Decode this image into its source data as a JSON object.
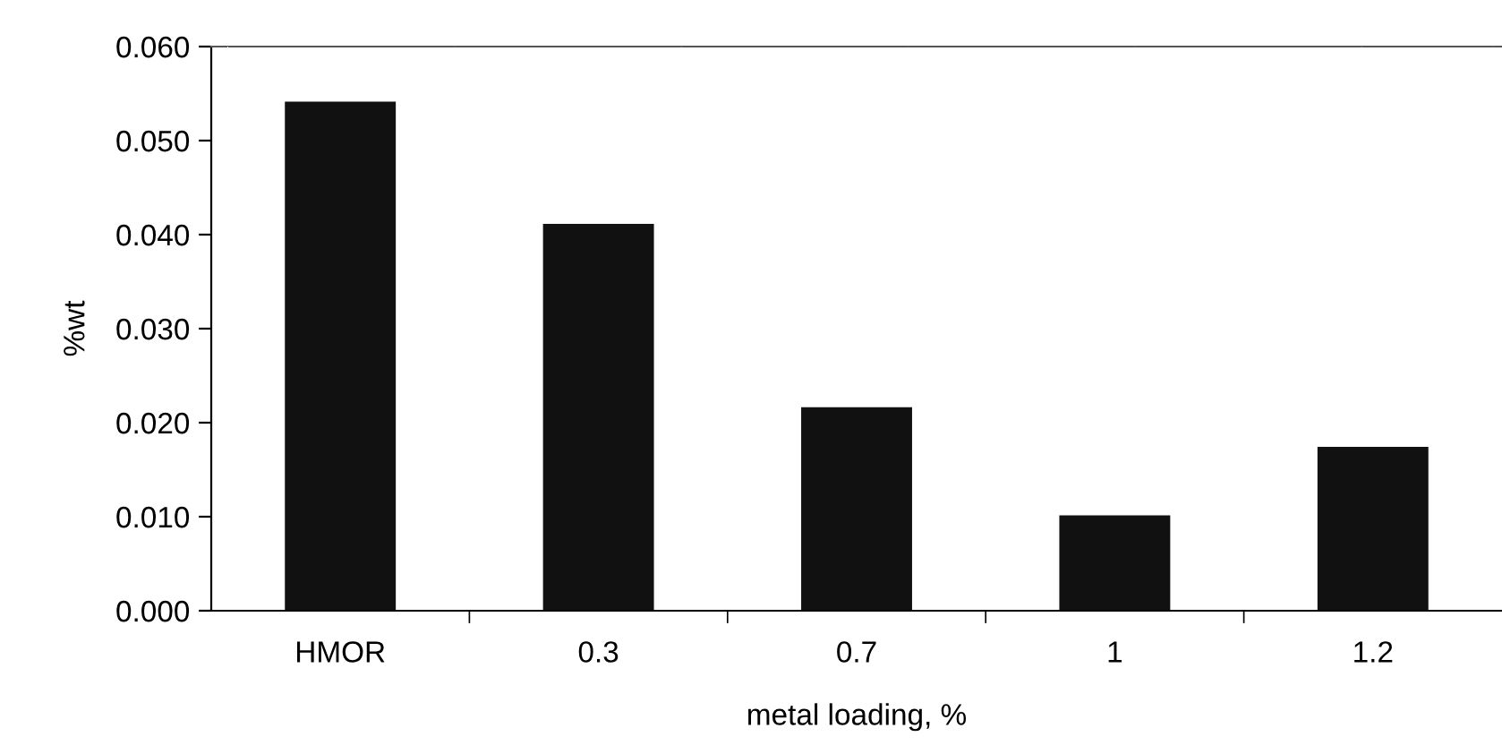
{
  "chart_data": {
    "type": "bar",
    "xlabel": "metal loading, %",
    "ylabel": "%wt",
    "categories": [
      "HMOR",
      "0.3",
      "0.7",
      "1",
      "1.2"
    ],
    "values": [
      0.054,
      0.041,
      0.0215,
      0.01,
      0.0173
    ],
    "color": "#111111",
    "ylim": [
      0,
      0.06
    ],
    "yticks": [
      {
        "value": 0,
        "label": "0.000"
      },
      {
        "value": 0.01,
        "label": "0.010"
      },
      {
        "value": 0.02,
        "label": "0.020"
      },
      {
        "value": 0.03,
        "label": "0.030"
      },
      {
        "value": 0.04,
        "label": "0.040"
      },
      {
        "value": 0.05,
        "label": "0.050"
      },
      {
        "value": 0.06,
        "label": "0.060"
      }
    ],
    "grid": false
  }
}
